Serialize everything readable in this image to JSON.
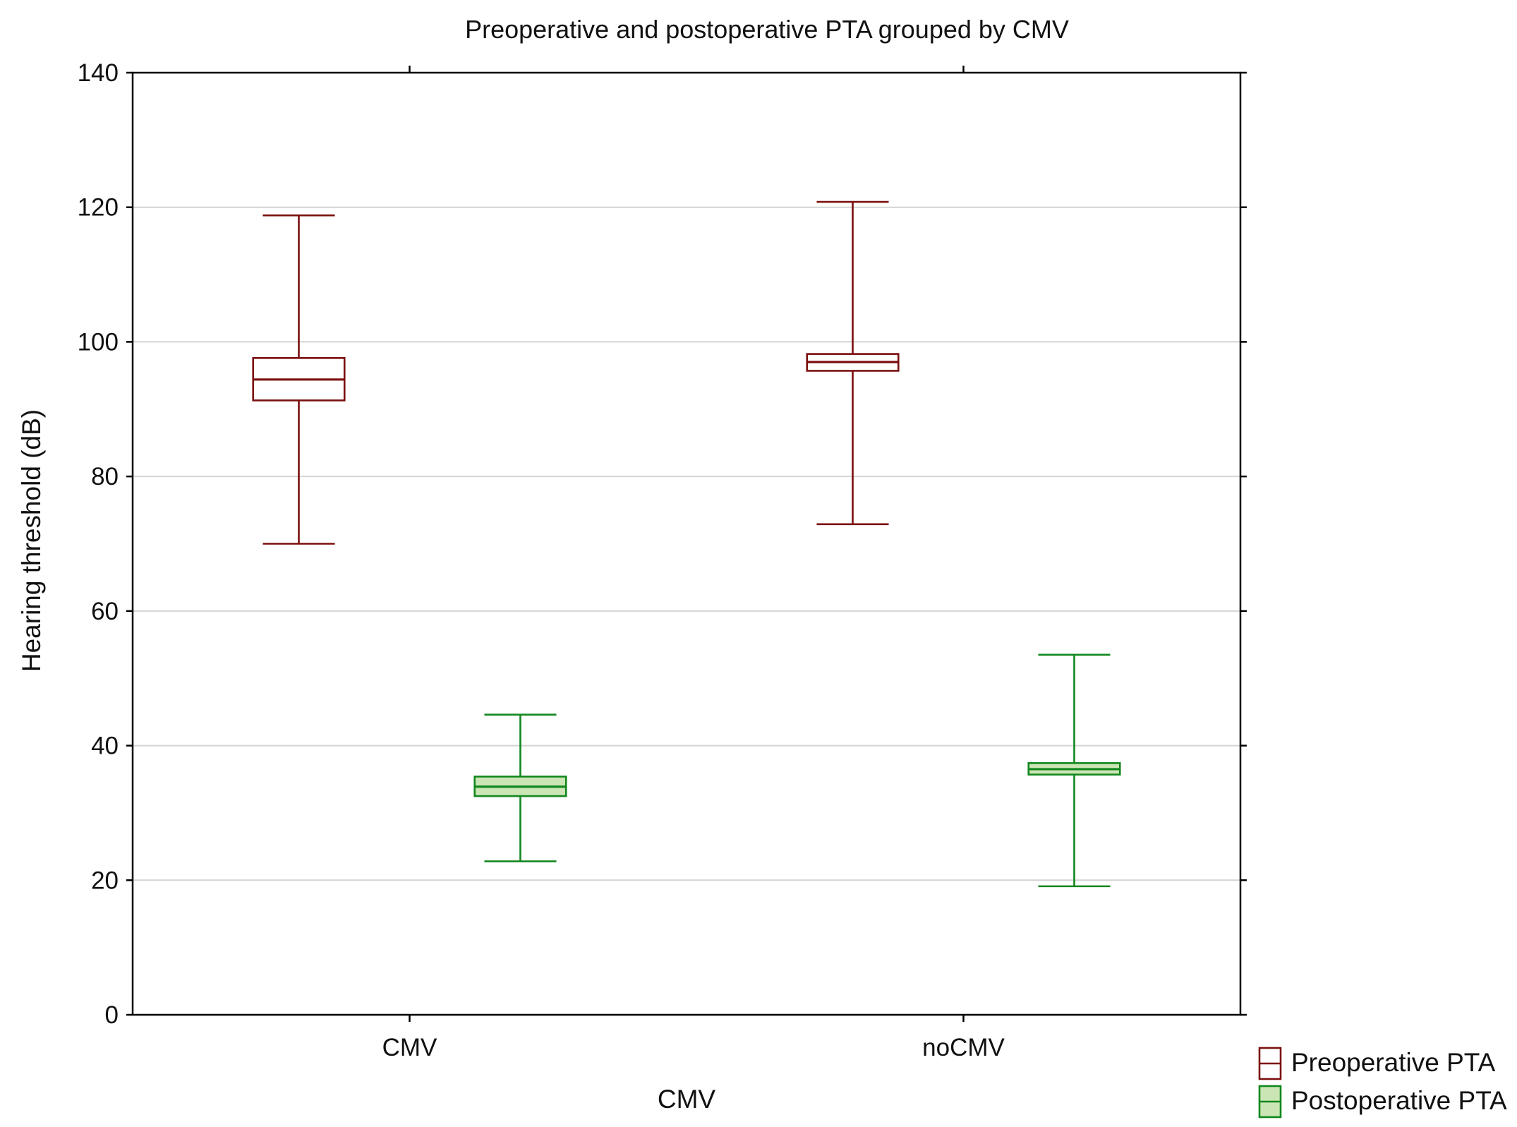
{
  "chart_data": {
    "type": "boxplot",
    "title": "Preoperative and postoperative PTA grouped by CMV",
    "xlabel": "CMV",
    "ylabel": "Hearing threshold (dB)",
    "ylim": [
      0,
      140
    ],
    "yticks": [
      0,
      20,
      40,
      60,
      80,
      100,
      120,
      140
    ],
    "grid": true,
    "categories": [
      "CMV",
      "noCMV"
    ],
    "legend_position": "bottom-right",
    "series": [
      {
        "name": "Preoperative PTA",
        "color": "#7b0f0f",
        "fill": "#ffffff",
        "boxes": [
          {
            "category": "CMV",
            "whisker_low": 70,
            "q1": 91.3,
            "median": 94.4,
            "q3": 97.6,
            "whisker_high": 118.8
          },
          {
            "category": "noCMV",
            "whisker_low": 72.9,
            "q1": 95.7,
            "median": 97.0,
            "q3": 98.2,
            "whisker_high": 120.8
          }
        ]
      },
      {
        "name": "Postoperative PTA",
        "color": "#12871e",
        "fill": "#cbe6b4",
        "boxes": [
          {
            "category": "CMV",
            "whisker_low": 22.8,
            "q1": 32.5,
            "median": 33.9,
            "q3": 35.4,
            "whisker_high": 44.6
          },
          {
            "category": "noCMV",
            "whisker_low": 19.1,
            "q1": 35.7,
            "median": 36.5,
            "q3": 37.4,
            "whisker_high": 53.5
          }
        ]
      }
    ]
  }
}
